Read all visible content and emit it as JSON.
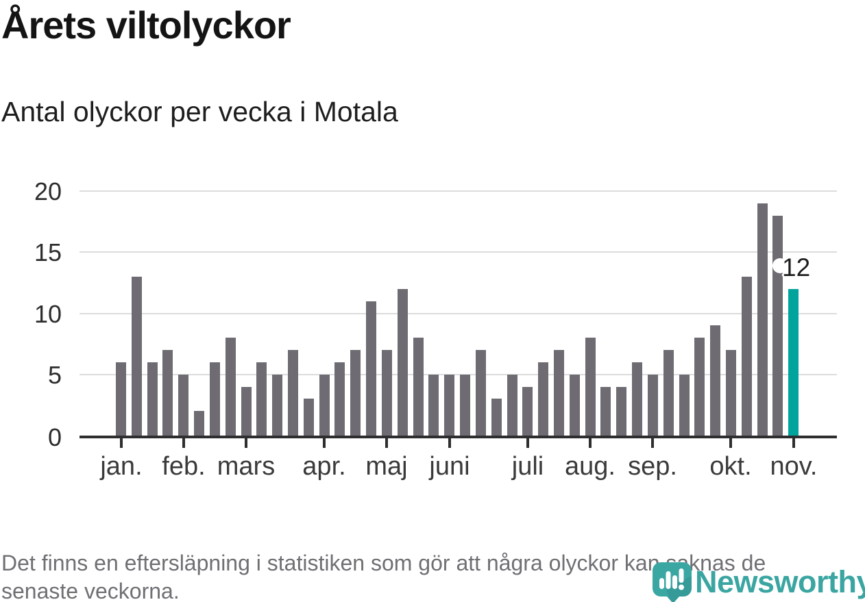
{
  "header": {
    "title": "Årets viltolyckor",
    "subtitle": "Antal olyckor per vecka i Motala"
  },
  "chart_data": {
    "type": "bar",
    "title": "Årets viltolyckor",
    "subtitle": "Antal olyckor per vecka i Motala",
    "xlabel": "",
    "ylabel": "",
    "x_unit": "vecka",
    "weeks": [
      1,
      2,
      3,
      4,
      5,
      6,
      7,
      8,
      9,
      10,
      11,
      12,
      13,
      14,
      15,
      16,
      17,
      18,
      19,
      20,
      21,
      22,
      23,
      24,
      25,
      26,
      27,
      28,
      29,
      30,
      31,
      32,
      33,
      34,
      35,
      36,
      37,
      38,
      39,
      40,
      41,
      42,
      43,
      44
    ],
    "values": [
      6,
      13,
      6,
      7,
      5,
      2,
      6,
      8,
      4,
      6,
      5,
      7,
      3,
      5,
      6,
      7,
      11,
      7,
      12,
      8,
      5,
      5,
      5,
      7,
      3,
      5,
      4,
      6,
      7,
      5,
      8,
      4,
      4,
      6,
      5,
      7,
      5,
      8,
      9,
      7,
      13,
      19,
      18,
      12
    ],
    "months": [
      {
        "label": "jan.",
        "week": 1
      },
      {
        "label": "feb.",
        "week": 5
      },
      {
        "label": "mars",
        "week": 9
      },
      {
        "label": "apr.",
        "week": 14
      },
      {
        "label": "maj",
        "week": 18
      },
      {
        "label": "juni",
        "week": 22
      },
      {
        "label": "juli",
        "week": 27
      },
      {
        "label": "aug.",
        "week": 31
      },
      {
        "label": "sep.",
        "week": 35
      },
      {
        "label": "okt.",
        "week": 40
      },
      {
        "label": "nov.",
        "week": 44
      }
    ],
    "yticks": [
      0,
      5,
      10,
      15,
      20
    ],
    "ylim": [
      0,
      20
    ],
    "grid": "horizontal",
    "legend": "none",
    "annotation": {
      "text": "12",
      "week": 44
    },
    "colors": {
      "bar": "#6e6b72",
      "highlight": "#00a49d"
    }
  },
  "footer": {
    "lines": [
      "Det finns en eftersläpning i statistiken som gör att några olyckor kan saknas de",
      "senaste veckorna."
    ]
  },
  "branding": {
    "wordmark": "Newsworthy",
    "logo_color": "#3aa7a3",
    "logo_icon": "bar-chart-exclamation-icon"
  }
}
